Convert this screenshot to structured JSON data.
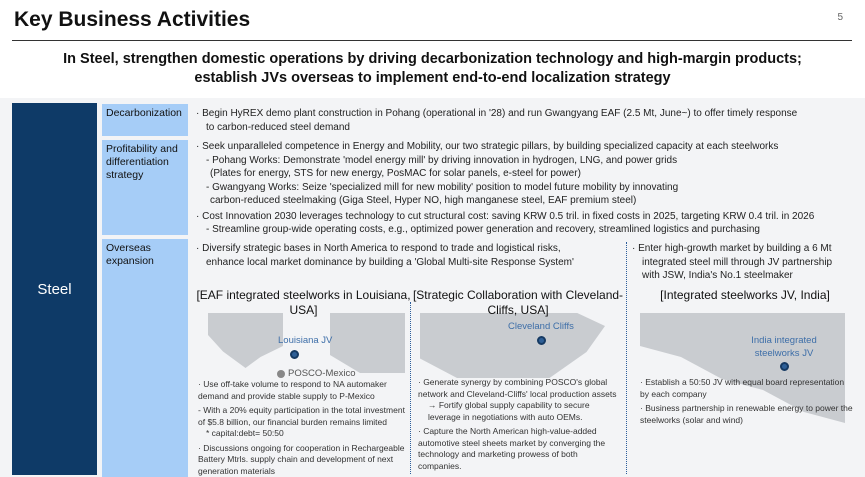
{
  "header": {
    "title": "Key Business Activities",
    "page_number": "5"
  },
  "subtitle": [
    "In Steel, strengthen domestic operations by driving decarbonization technology and high-margin products;",
    "establish JVs overseas to implement end-to-end localization strategy"
  ],
  "segment": "Steel",
  "colors": {
    "navy": "#0e3a67",
    "label_blue": "#a6cdf7",
    "panel": "#f3f4f6",
    "pin": "#2e5f97"
  },
  "decarbonization": {
    "label": "Decarbonization",
    "lines": [
      "· Begin HyREX demo plant construction in Pohang (operational in '28) and run Gwangyang EAF (2.5 Mt, June~) to offer timely response",
      "to carbon-reduced steel demand"
    ]
  },
  "profitability": {
    "label": "Profitability and differentiation strategy",
    "lines": [
      "· Seek unparalleled competence in Energy and Mobility, our two strategic pillars, by building specialized capacity at each steelworks",
      "- Pohang Works: Demonstrate 'model energy mill' by driving innovation in hydrogen, LNG, and power grids",
      "(Plates for energy, STS for new energy, PosMAC for solar panels, e-steel for power)",
      "- Gwangyang Works: Seize 'specialized mill for new mobility' position to model future mobility by innovating",
      "carbon-reduced steelmaking (Giga Steel, Hyper NO, high manganese steel, EAF premium steel)",
      "· Cost Innovation 2030 leverages technology to cut structural cost: saving KRW 0.5 tril. in fixed costs in 2025, targeting KRW 0.4 tril. in 2026",
      "- Streamline group-wide operating costs, e.g., optimized power generation and recovery, streamlined logistics and purchasing"
    ]
  },
  "overseas": {
    "label": "Overseas expansion",
    "na_intro": [
      "· Diversify strategic bases in North America to respond to trade and logistical risks,",
      "enhance local market dominance by building a 'Global Multi-site Response System'"
    ],
    "india_intro": [
      "· Enter high-growth market by building a 6 Mt",
      "integrated steel mill through JV partnership",
      "with JSW, India's No.1 steelmaker"
    ],
    "columns": [
      {
        "heading": "[EAF integrated steelworks in Louisiana, USA]",
        "pin_label": "Louisiana JV",
        "secondary_pin": "POSCO-Mexico",
        "bullets": [
          "· Use off-take volume to respond to NA automaker demand and provide stable supply to P-Mexico",
          "- With a 20% equity participation in the total investment of $5.8 billion, our financial burden remains limited",
          "* capital:debt= 50:50",
          "· Discussions ongoing for cooperation in Rechargeable Battery Mtrls. supply chain and development of next generation materials"
        ]
      },
      {
        "heading": "[Strategic Collaboration with Cleveland-Cliffs, USA]",
        "pin_label": "Cleveland Cliffs",
        "bullets": [
          "· Generate synergy by combining POSCO's global network and Cleveland-Cliffs' local production assets",
          "→ Fortify global supply capability to secure leverage in negotiations with auto OEMs.",
          "· Capture the North American high-value-added automotive steel sheets market by converging the technology and marketing prowess of both companies."
        ]
      },
      {
        "heading": "[Integrated steelworks JV, India]",
        "pin_label": "India integrated steelworks JV",
        "bullets": [
          "· Establish a 50:50 JV with equal board representation by each company",
          "· Business partnership in renewable energy to power the steelworks (solar and wind)"
        ]
      }
    ]
  }
}
